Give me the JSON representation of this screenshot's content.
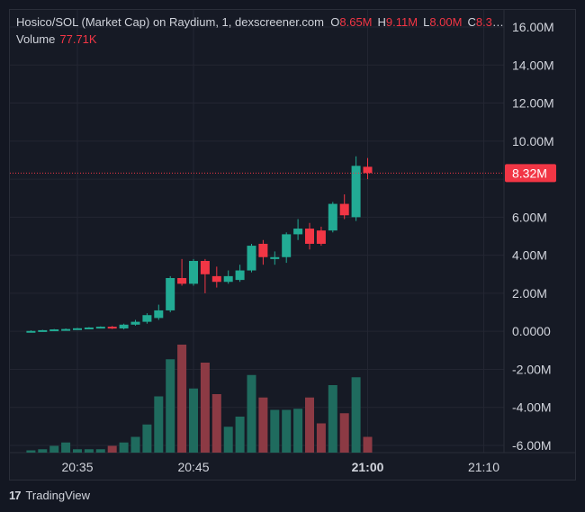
{
  "header": {
    "title": "Hosico/SOL (Market Cap) on Raydium, 1, dexscreener.com",
    "ohlc": [
      {
        "key": "O",
        "value": "8.65M"
      },
      {
        "key": "H",
        "value": "9.11M"
      },
      {
        "key": "L",
        "value": "8.00M"
      },
      {
        "key": "C",
        "value": "8.32M..."
      }
    ],
    "volume_label": "Volume",
    "volume_value": "77.71K"
  },
  "brand": {
    "logo": "17",
    "name": "TradingView"
  },
  "colors": {
    "up": "#22ab94",
    "down": "#f23645",
    "vol_up": "#1f6b5e",
    "vol_down": "#8c3a44"
  },
  "chart_data": {
    "type": "candlestick",
    "y_ticks": [
      "16.00M",
      "14.00M",
      "12.00M",
      "10.00M",
      "6.00M",
      "4.00M",
      "2.00M",
      "0.0000",
      "-2.00M",
      "-4.00M",
      "-6.00M"
    ],
    "y_tick_values": [
      16,
      14,
      12,
      10,
      6,
      4,
      2,
      0,
      -2,
      -4,
      -6
    ],
    "ylim": [
      -6.3,
      17
    ],
    "x_ticks": [
      "20:35",
      "20:45",
      "21:00",
      "21:10"
    ],
    "x_tick_minutes": [
      35,
      45,
      60,
      70
    ],
    "last_price": {
      "label": "8.32M",
      "value": 8.32
    },
    "candles": [
      {
        "t": 31,
        "o": 0.0,
        "h": 0.05,
        "l": -0.02,
        "c": 0.02
      },
      {
        "t": 32,
        "o": 0.02,
        "h": 0.08,
        "l": 0.0,
        "c": 0.06
      },
      {
        "t": 33,
        "o": 0.06,
        "h": 0.12,
        "l": 0.04,
        "c": 0.1
      },
      {
        "t": 34,
        "o": 0.1,
        "h": 0.15,
        "l": 0.08,
        "c": 0.12
      },
      {
        "t": 35,
        "o": 0.12,
        "h": 0.18,
        "l": 0.1,
        "c": 0.16
      },
      {
        "t": 36,
        "o": 0.16,
        "h": 0.22,
        "l": 0.14,
        "c": 0.2
      },
      {
        "t": 37,
        "o": 0.2,
        "h": 0.26,
        "l": 0.18,
        "c": 0.24
      },
      {
        "t": 38,
        "o": 0.24,
        "h": 0.28,
        "l": 0.12,
        "c": 0.15
      },
      {
        "t": 39,
        "o": 0.15,
        "h": 0.4,
        "l": 0.1,
        "c": 0.35
      },
      {
        "t": 40,
        "o": 0.35,
        "h": 0.6,
        "l": 0.3,
        "c": 0.5
      },
      {
        "t": 41,
        "o": 0.5,
        "h": 0.95,
        "l": 0.4,
        "c": 0.85
      },
      {
        "t": 42,
        "o": 0.7,
        "h": 1.4,
        "l": 0.6,
        "c": 1.1
      },
      {
        "t": 43,
        "o": 1.1,
        "h": 2.9,
        "l": 1.0,
        "c": 2.8
      },
      {
        "t": 44,
        "o": 2.8,
        "h": 3.8,
        "l": 2.4,
        "c": 2.5
      },
      {
        "t": 45,
        "o": 2.5,
        "h": 3.8,
        "l": 2.4,
        "c": 3.7
      },
      {
        "t": 46,
        "o": 3.7,
        "h": 3.8,
        "l": 2.0,
        "c": 3.0
      },
      {
        "t": 47,
        "o": 2.9,
        "h": 3.4,
        "l": 2.3,
        "c": 2.6
      },
      {
        "t": 48,
        "o": 2.6,
        "h": 3.2,
        "l": 2.5,
        "c": 2.9
      },
      {
        "t": 49,
        "o": 2.7,
        "h": 3.5,
        "l": 2.6,
        "c": 3.2
      },
      {
        "t": 50,
        "o": 3.2,
        "h": 4.6,
        "l": 3.1,
        "c": 4.5
      },
      {
        "t": 51,
        "o": 4.6,
        "h": 4.8,
        "l": 3.5,
        "c": 3.9
      },
      {
        "t": 52,
        "o": 3.8,
        "h": 4.2,
        "l": 3.5,
        "c": 3.9
      },
      {
        "t": 53,
        "o": 3.9,
        "h": 5.2,
        "l": 3.6,
        "c": 5.1
      },
      {
        "t": 54,
        "o": 5.1,
        "h": 5.9,
        "l": 4.8,
        "c": 5.4
      },
      {
        "t": 55,
        "o": 5.4,
        "h": 5.7,
        "l": 4.3,
        "c": 4.6
      },
      {
        "t": 56,
        "o": 5.3,
        "h": 5.5,
        "l": 4.5,
        "c": 4.6
      },
      {
        "t": 57,
        "o": 5.3,
        "h": 6.8,
        "l": 5.2,
        "c": 6.7
      },
      {
        "t": 58,
        "o": 6.7,
        "h": 7.2,
        "l": 5.9,
        "c": 6.1
      },
      {
        "t": 59,
        "o": 6.0,
        "h": 9.2,
        "l": 5.8,
        "c": 8.7
      },
      {
        "t": 60,
        "o": 8.65,
        "h": 9.11,
        "l": 8.0,
        "c": 8.32
      }
    ],
    "volumes": [
      {
        "t": 31,
        "v": 0.02
      },
      {
        "t": 32,
        "v": 0.03
      },
      {
        "t": 33,
        "v": 0.06
      },
      {
        "t": 34,
        "v": 0.09
      },
      {
        "t": 35,
        "v": 0.03
      },
      {
        "t": 36,
        "v": 0.03
      },
      {
        "t": 37,
        "v": 0.03
      },
      {
        "t": 38,
        "v": 0.06
      },
      {
        "t": 39,
        "v": 0.09
      },
      {
        "t": 40,
        "v": 0.14
      },
      {
        "t": 41,
        "v": 0.25
      },
      {
        "t": 42,
        "v": 0.5
      },
      {
        "t": 43,
        "v": 0.83
      },
      {
        "t": 44,
        "v": 0.96
      },
      {
        "t": 45,
        "v": 0.57
      },
      {
        "t": 46,
        "v": 0.8
      },
      {
        "t": 47,
        "v": 0.52
      },
      {
        "t": 48,
        "v": 0.23
      },
      {
        "t": 49,
        "v": 0.32
      },
      {
        "t": 50,
        "v": 0.69
      },
      {
        "t": 51,
        "v": 0.49
      },
      {
        "t": 52,
        "v": 0.38
      },
      {
        "t": 53,
        "v": 0.38
      },
      {
        "t": 54,
        "v": 0.39
      },
      {
        "t": 55,
        "v": 0.49
      },
      {
        "t": 56,
        "v": 0.26
      },
      {
        "t": 57,
        "v": 0.6
      },
      {
        "t": 58,
        "v": 0.35
      },
      {
        "t": 59,
        "v": 0.67
      },
      {
        "t": 60,
        "v": 0.14
      }
    ]
  }
}
